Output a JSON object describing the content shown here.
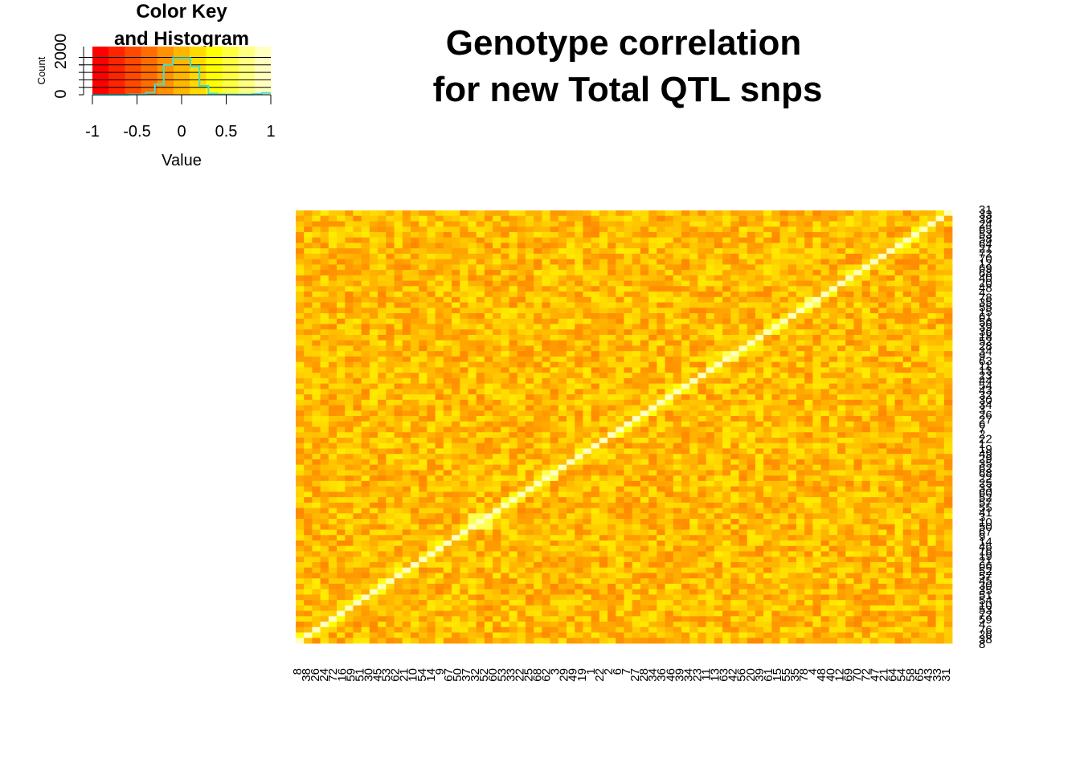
{
  "chart_data": {
    "type": "heatmap",
    "title": [
      "Genotype correlation",
      "for new Total QTL snps"
    ],
    "color_key": {
      "title": [
        "Color Key",
        "and Histogram"
      ],
      "xlabel": "Value",
      "ylabel": "Count",
      "x_ticks": [
        "-1",
        "-0.5",
        "0",
        "0.5",
        "1"
      ],
      "y_ticks": [
        "0",
        "2000"
      ],
      "xlim": [
        -1,
        1
      ],
      "ylim": [
        0,
        2000
      ],
      "colors": [
        "#FF0000",
        "#FF2400",
        "#FF4900",
        "#FF6D00",
        "#FF9200",
        "#FFB600",
        "#FFDB00",
        "#FFFF00",
        "#FFFF40",
        "#FFFF80",
        "#FFFFBF"
      ],
      "histogram_color": "#40E0D0",
      "histogram": {
        "bin_edges": [
          -1,
          -0.8,
          -0.6,
          -0.4,
          -0.3,
          -0.2,
          -0.1,
          0,
          0.1,
          0.2,
          0.3,
          0.4,
          0.6,
          0.8,
          0.9,
          1
        ],
        "counts": [
          0,
          0,
          20,
          150,
          700,
          2000,
          2450,
          2450,
          1900,
          600,
          80,
          30,
          20,
          60,
          120
        ]
      }
    },
    "row_labels": [
      "31",
      "33",
      "38",
      "24",
      "65",
      "53",
      "58",
      "64",
      "21",
      "72",
      "70",
      "12",
      "69",
      "68",
      "40",
      "20",
      "48",
      "4",
      "78",
      "35",
      "55",
      "15",
      "61",
      "56",
      "39",
      "36",
      "18",
      "52",
      "28",
      "34",
      "9",
      "63",
      "11",
      "13",
      "23",
      "44",
      "54",
      "43",
      "32",
      "30",
      "34",
      "3",
      "26",
      "27",
      "6",
      "7",
      "2",
      "22",
      "1",
      "19",
      "49",
      "29",
      "35",
      "62",
      "68",
      "22",
      "25",
      "33",
      "60",
      "52",
      "57",
      "55",
      "41",
      "3",
      "10",
      "50",
      "67",
      "9",
      "14",
      "46",
      "16",
      "19",
      "21",
      "66",
      "52",
      "57",
      "45",
      "30",
      "35",
      "51",
      "54",
      "10",
      "53",
      "72",
      "59",
      "4",
      "76",
      "26",
      "38",
      "8"
    ],
    "col_labels": [
      "8",
      "38",
      "26",
      "24",
      "72",
      "16",
      "59",
      "51",
      "30",
      "45",
      "53",
      "62",
      "21",
      "10",
      "54",
      "14",
      "9",
      "67",
      "50",
      "37",
      "32",
      "52",
      "60",
      "53",
      "33",
      "22",
      "25",
      "68",
      "62",
      "3",
      "29",
      "49",
      "19",
      "1",
      "22",
      "2",
      "6",
      "7",
      "27",
      "28",
      "34",
      "36",
      "46",
      "39",
      "34",
      "23",
      "11",
      "13",
      "63",
      "42",
      "56",
      "20",
      "39",
      "61",
      "15",
      "55",
      "35",
      "78",
      "4",
      "48",
      "40",
      "12",
      "69",
      "70",
      "72",
      "47",
      "21",
      "64",
      "54",
      "58",
      "65",
      "43",
      "33",
      "31"
    ]
  }
}
